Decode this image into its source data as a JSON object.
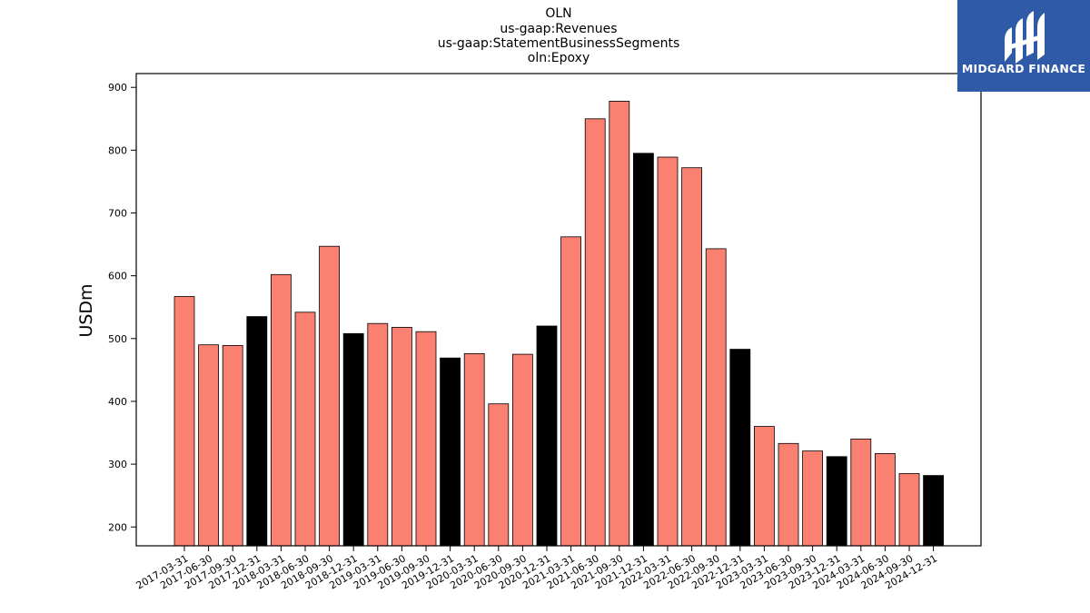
{
  "chart_data": {
    "type": "bar",
    "title": [
      "OLN",
      "us-gaap:Revenues",
      "us-gaap:StatementBusinessSegments",
      "oln:Epoxy"
    ],
    "xlabel": "",
    "ylabel": "USDm",
    "ylim": [
      170,
      922
    ],
    "yticks": [
      200,
      300,
      400,
      500,
      600,
      700,
      800,
      900
    ],
    "categories": [
      "2017-03-31",
      "2017-06-30",
      "2017-09-30",
      "2017-12-31",
      "2018-03-31",
      "2018-06-30",
      "2018-09-30",
      "2018-12-31",
      "2019-03-31",
      "2019-06-30",
      "2019-09-30",
      "2019-12-31",
      "2020-03-31",
      "2020-06-30",
      "2020-09-30",
      "2020-12-31",
      "2021-03-31",
      "2021-06-30",
      "2021-09-30",
      "2021-12-31",
      "2022-03-31",
      "2022-06-30",
      "2022-09-30",
      "2022-12-31",
      "2023-03-31",
      "2023-06-30",
      "2023-09-30",
      "2023-12-31",
      "2024-03-31",
      "2024-06-30",
      "2024-09-30",
      "2024-12-31"
    ],
    "values": [
      567,
      490,
      489,
      535,
      602,
      542,
      647,
      508,
      524,
      518,
      511,
      469,
      476,
      396,
      475,
      520,
      662,
      850,
      878,
      795,
      789,
      772,
      643,
      483,
      360,
      333,
      321,
      312,
      340,
      317,
      285,
      282
    ],
    "bar_colors": {
      "quarter": "#fa8072",
      "year_end": "#000000"
    },
    "grid": false
  },
  "logo": {
    "text": "MIDGARD FINANCE",
    "background": "#2f5aa8"
  }
}
